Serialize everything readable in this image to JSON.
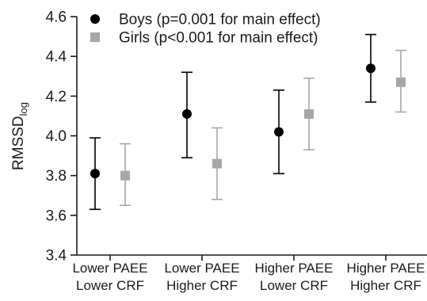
{
  "chart_data": {
    "type": "scatter",
    "title": "",
    "xlabel": "",
    "ylabel": "RMSSD",
    "ylabel_subscript": "log",
    "ylim": [
      3.4,
      4.6
    ],
    "yticks": [
      "3.4",
      "3.6",
      "3.8",
      "4.0",
      "4.2",
      "4.4",
      "4.6"
    ],
    "grid": false,
    "legend_position": "top-left",
    "categories": [
      [
        "Lower PAEE",
        "Lower CRF"
      ],
      [
        "Lower PAEE",
        "Higher CRF"
      ],
      [
        "Higher PAEE",
        "Lower CRF"
      ],
      [
        "Higher PAEE",
        "Higher CRF"
      ]
    ],
    "series": [
      {
        "name": "Boys (p=0.001 for main effect)",
        "marker": "circle",
        "color": "#000000",
        "values": [
          3.81,
          4.11,
          4.02,
          4.34
        ],
        "error_low": [
          3.63,
          3.89,
          3.81,
          4.17
        ],
        "error_high": [
          3.99,
          4.32,
          4.23,
          4.51
        ]
      },
      {
        "name": "Girls (p<0.001 for main effect)",
        "marker": "square",
        "color": "#a6a6a6",
        "values": [
          3.8,
          3.86,
          4.11,
          4.27
        ],
        "error_low": [
          3.65,
          3.68,
          3.93,
          4.12
        ],
        "error_high": [
          3.96,
          4.04,
          4.29,
          4.43
        ]
      }
    ]
  }
}
